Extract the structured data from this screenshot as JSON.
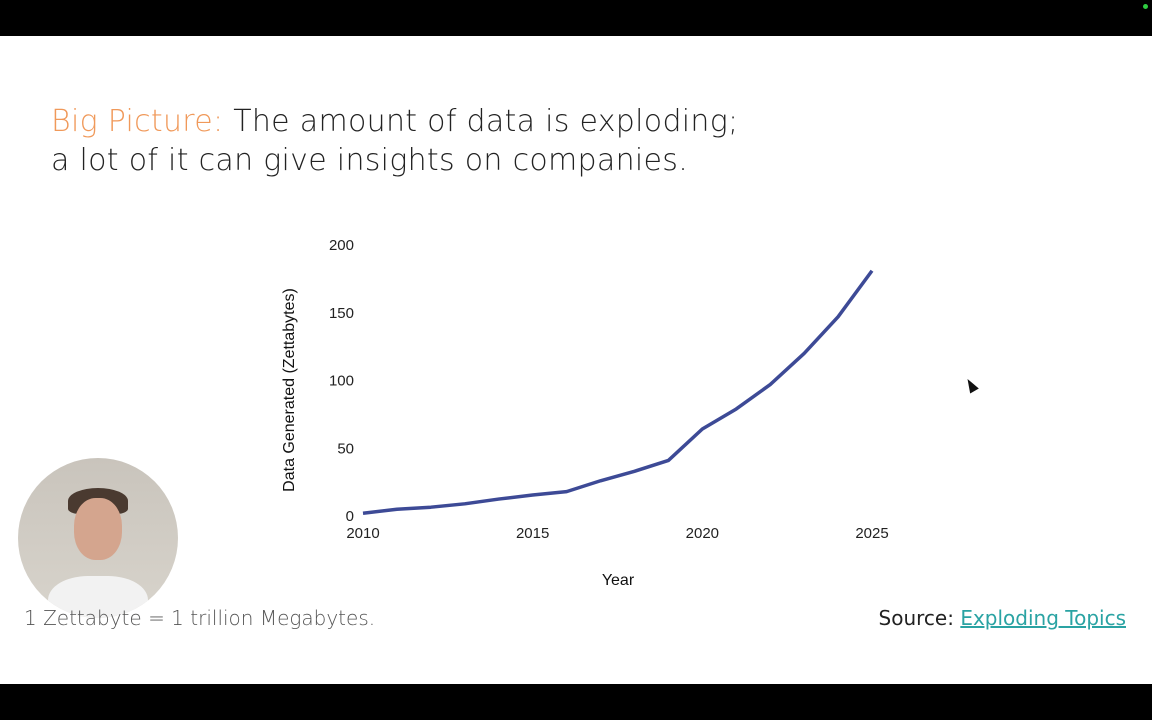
{
  "slide": {
    "title_accent": "Big Picture:",
    "title_line1": " The amount of data is exploding;",
    "title_line2": "a lot of it can give insights on companies.",
    "footnote": "1 Zettabyte = 1 trillion Megabytes.",
    "source_label": "Source: ",
    "source_link": "Exploding Topics"
  },
  "colors": {
    "accent": "#f0995a",
    "line": "#3d4a96",
    "link": "#2aa3a3"
  },
  "chart_data": {
    "type": "line",
    "title": "",
    "xlabel": "Year",
    "ylabel": "Data Generated (Zettabytes)",
    "x": [
      2010,
      2011,
      2012,
      2013,
      2014,
      2015,
      2016,
      2017,
      2018,
      2019,
      2020,
      2021,
      2022,
      2023,
      2024,
      2025
    ],
    "series": [
      {
        "name": "Data Generated",
        "values": [
          2,
          5,
          6.5,
          9,
          12.5,
          15.5,
          18,
          26,
          33,
          41,
          64.2,
          79,
          97,
          120,
          147,
          181
        ]
      }
    ],
    "xlim": [
      2010,
      2025
    ],
    "ylim": [
      0,
      200
    ],
    "xticks": [
      "2010",
      "2015",
      "2020",
      "2025"
    ],
    "yticks": [
      "0",
      "50",
      "100",
      "150",
      "200"
    ],
    "grid": false
  }
}
